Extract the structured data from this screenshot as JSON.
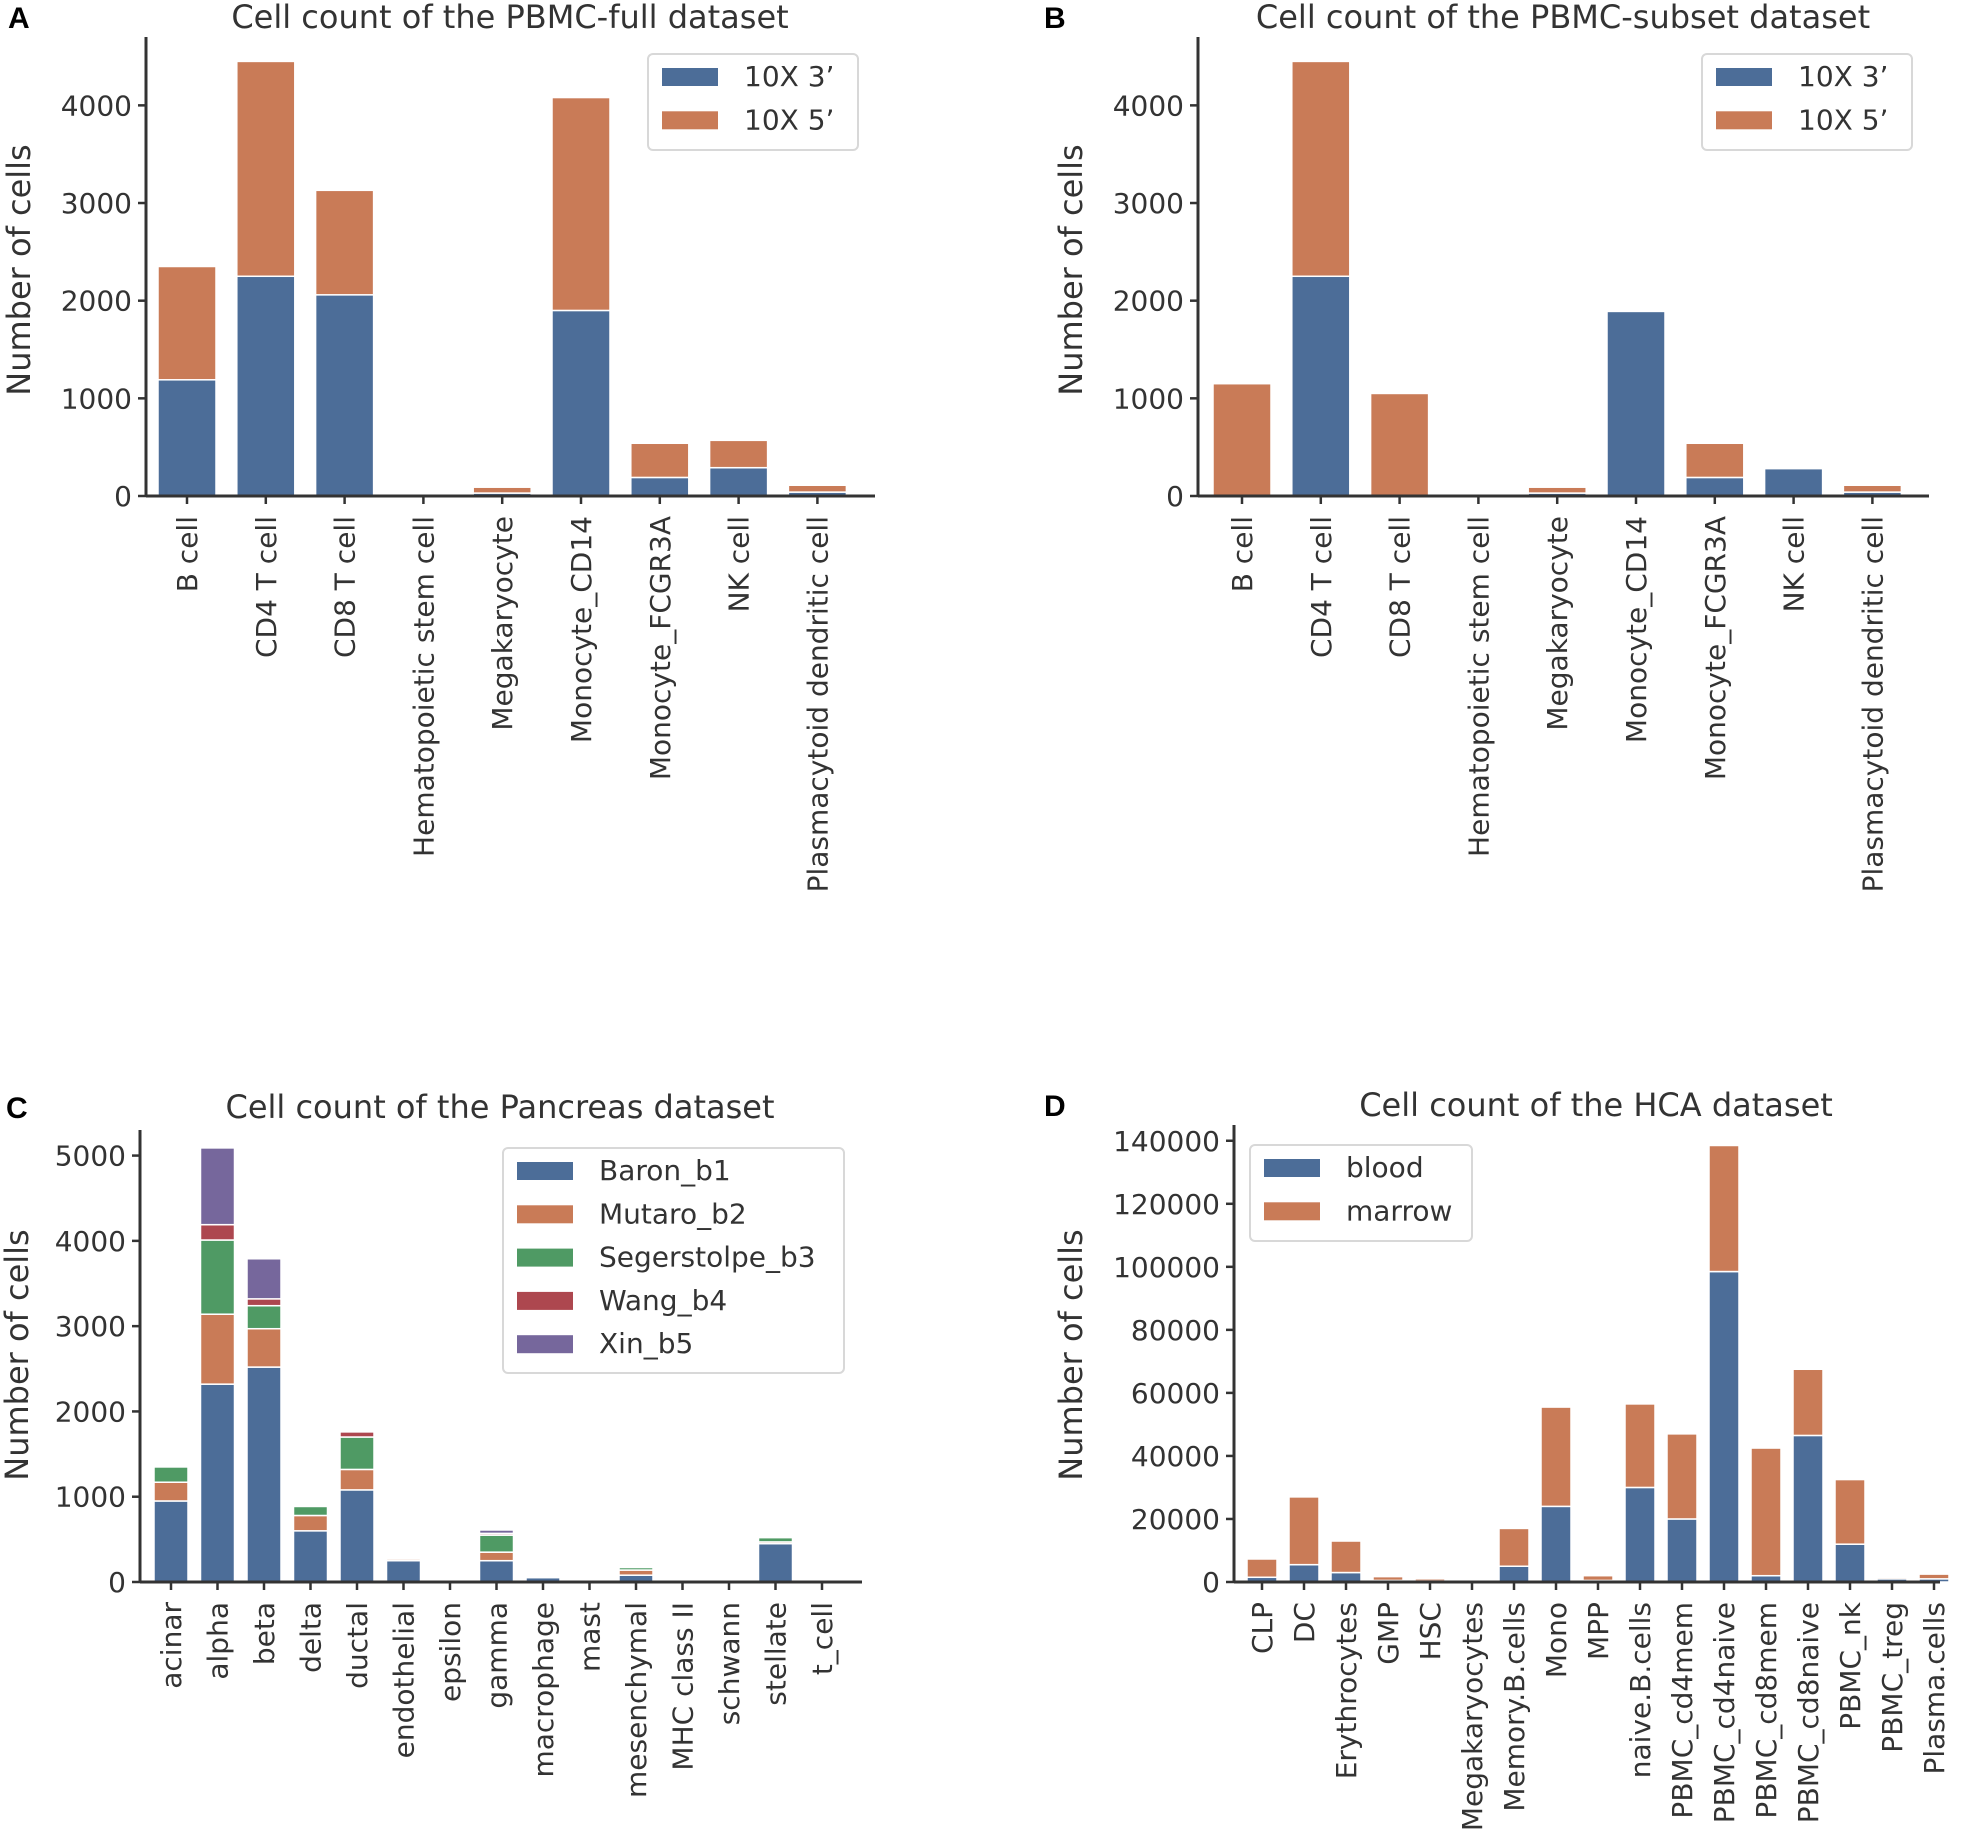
{
  "chart_data": [
    {
      "panel": "A",
      "type": "bar",
      "stacked": true,
      "title": "Cell count of the PBMC-full dataset",
      "xlabel": "",
      "ylabel": "Number of cells",
      "ylim": [
        0,
        4700
      ],
      "yticks": [
        0,
        1000,
        2000,
        3000,
        4000
      ],
      "legend_position": "top-right",
      "categories": [
        "B cell",
        "CD4 T cell",
        "CD8 T cell",
        "Hematopoietic stem cell",
        "Megakaryocyte",
        "Monocyte_CD14",
        "Monocyte_FCGR3A",
        "NK cell",
        "Plasmacytoid dendritic cell"
      ],
      "series": [
        {
          "name": "10X 3’",
          "color": "#4c6d98",
          "values": [
            1190,
            2250,
            2060,
            0,
            30,
            1900,
            190,
            290,
            40
          ]
        },
        {
          "name": "10X 5’",
          "color": "#c97b57",
          "values": [
            1160,
            2200,
            1070,
            5,
            60,
            2180,
            350,
            280,
            70
          ]
        }
      ]
    },
    {
      "panel": "B",
      "type": "bar",
      "stacked": true,
      "title": "Cell count of the PBMC-subset dataset",
      "xlabel": "",
      "ylabel": "Number of cells",
      "ylim": [
        0,
        4700
      ],
      "yticks": [
        0,
        1000,
        2000,
        3000,
        4000
      ],
      "legend_position": "top-right",
      "categories": [
        "B cell",
        "CD4 T cell",
        "CD8 T cell",
        "Hematopoietic stem cell",
        "Megakaryocyte",
        "Monocyte_CD14",
        "Monocyte_FCGR3A",
        "NK cell",
        "Plasmacytoid dendritic cell"
      ],
      "series": [
        {
          "name": "10X 3’",
          "color": "#4c6d98",
          "values": [
            0,
            2250,
            0,
            0,
            30,
            1890,
            190,
            280,
            40
          ]
        },
        {
          "name": "10X 5’",
          "color": "#c97b57",
          "values": [
            1150,
            2200,
            1050,
            5,
            60,
            0,
            350,
            0,
            70
          ]
        }
      ]
    },
    {
      "panel": "C",
      "type": "bar",
      "stacked": true,
      "title": "Cell count of the Pancreas dataset",
      "xlabel": "",
      "ylabel": "Number of cells",
      "ylim": [
        0,
        5300
      ],
      "yticks": [
        0,
        1000,
        2000,
        3000,
        4000,
        5000
      ],
      "legend_position": "top-right",
      "categories": [
        "acinar",
        "alpha",
        "beta",
        "delta",
        "ductal",
        "endothelial",
        "epsilon",
        "gamma",
        "macrophage",
        "mast",
        "mesenchymal",
        "MHC class II",
        "schwann",
        "stellate",
        "t_cell"
      ],
      "series": [
        {
          "name": "Baron_b1",
          "color": "#4c6d98",
          "values": [
            950,
            2320,
            2520,
            600,
            1080,
            250,
            20,
            250,
            55,
            25,
            80,
            5,
            15,
            450,
            5
          ]
        },
        {
          "name": "Mutaro_b2",
          "color": "#c97b57",
          "values": [
            220,
            820,
            450,
            180,
            240,
            20,
            5,
            100,
            0,
            10,
            60,
            0,
            10,
            20,
            0
          ]
        },
        {
          "name": "Segerstolpe_b3",
          "color": "#4f9a64",
          "values": [
            180,
            870,
            270,
            110,
            380,
            15,
            5,
            200,
            5,
            10,
            30,
            5,
            5,
            50,
            0
          ]
        },
        {
          "name": "Wang_b4",
          "color": "#ad474f",
          "values": [
            10,
            180,
            80,
            5,
            60,
            0,
            0,
            20,
            0,
            0,
            0,
            0,
            0,
            0,
            0
          ]
        },
        {
          "name": "Xin_b5",
          "color": "#76679c",
          "values": [
            0,
            900,
            470,
            0,
            0,
            0,
            0,
            40,
            0,
            0,
            0,
            0,
            0,
            0,
            0
          ]
        }
      ]
    },
    {
      "panel": "D",
      "type": "bar",
      "stacked": true,
      "title": "Cell count of the HCA dataset",
      "xlabel": "",
      "ylabel": "Number of cells",
      "ylim": [
        0,
        145000
      ],
      "yticks": [
        0,
        20000,
        40000,
        60000,
        80000,
        100000,
        120000,
        140000
      ],
      "legend_position": "top-left",
      "categories": [
        "CLP",
        "DC",
        "Erythrocytes",
        "GMP",
        "HSC",
        "Megakaryocytes",
        "Memory.B.cells",
        "Mono",
        "MPP",
        "naive.B.cells",
        "PBMC_cd4mem",
        "PBMC_cd4naive",
        "PBMC_cd8mem",
        "PBMC_cd8naive",
        "PBMC_nk",
        "PBMC_treg",
        "Plasma.cells"
      ],
      "series": [
        {
          "name": "blood",
          "color": "#4c6d98",
          "values": [
            1500,
            5500,
            3000,
            500,
            300,
            200,
            5000,
            24000,
            500,
            30000,
            20000,
            98500,
            2000,
            46500,
            12000,
            1000,
            1000
          ]
        },
        {
          "name": "marrow",
          "color": "#c97b57",
          "values": [
            5800,
            21500,
            10000,
            1200,
            700,
            500,
            12000,
            31500,
            1500,
            26500,
            27000,
            40000,
            40500,
            21000,
            20500,
            500,
            1500
          ]
        }
      ]
    }
  ]
}
